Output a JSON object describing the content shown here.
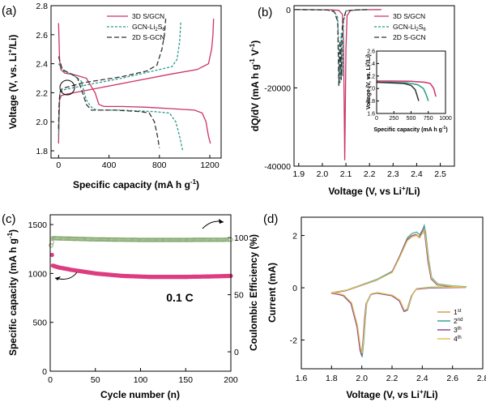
{
  "chart_data": [
    {
      "panel": "(a)",
      "type": "line",
      "xlabel": "Specific capacity (mA h g",
      "xlabel_sup": "-1",
      "xlabel_end": ")",
      "ylabel": "Voltage (V, vs. Li",
      "ylabel_sup": "+",
      "ylabel_end": "/Li)",
      "xlim": [
        -60,
        1290
      ],
      "ylim": [
        1.75,
        2.8
      ],
      "xticks": [
        0,
        400,
        800,
        1200
      ],
      "yticks": [
        1.8,
        2.0,
        2.2,
        2.4,
        2.6,
        2.8
      ],
      "legend_position": "top-right",
      "series": [
        {
          "name": "3D S/GCN",
          "color": "#cc3366",
          "dash": "solid",
          "discharge": [
            [
              0,
              2.68
            ],
            [
              8,
              2.42
            ],
            [
              18,
              2.36
            ],
            [
              50,
              2.335
            ],
            [
              120,
              2.325
            ],
            [
              220,
              2.3
            ],
            [
              290,
              2.2
            ],
            [
              320,
              2.12
            ],
            [
              360,
              2.105
            ],
            [
              500,
              2.105
            ],
            [
              700,
              2.1
            ],
            [
              900,
              2.09
            ],
            [
              1080,
              2.08
            ],
            [
              1140,
              2.06
            ],
            [
              1170,
              2.0
            ],
            [
              1190,
              1.9
            ],
            [
              1205,
              1.85
            ]
          ],
          "charge": [
            [
              0,
              1.85
            ],
            [
              3,
              2.0
            ],
            [
              8,
              2.15
            ],
            [
              20,
              2.18
            ],
            [
              60,
              2.19
            ],
            [
              300,
              2.23
            ],
            [
              600,
              2.28
            ],
            [
              900,
              2.33
            ],
            [
              1100,
              2.36
            ],
            [
              1190,
              2.4
            ],
            [
              1215,
              2.5
            ],
            [
              1225,
              2.6
            ],
            [
              1230,
              2.71
            ]
          ]
        },
        {
          "name": "GCN-Li",
          "name_sub": "2",
          "name_end": "S",
          "name_sub2": "6",
          "color": "#2a9a8a",
          "dash": "3,2",
          "discharge": [
            [
              0,
              2.4
            ],
            [
              40,
              2.35
            ],
            [
              120,
              2.32
            ],
            [
              180,
              2.28
            ],
            [
              220,
              2.15
            ],
            [
              260,
              2.1
            ],
            [
              300,
              2.08
            ],
            [
              500,
              2.08
            ],
            [
              760,
              2.07
            ],
            [
              880,
              2.06
            ],
            [
              930,
              2.0
            ],
            [
              960,
              1.9
            ],
            [
              985,
              1.8
            ]
          ],
          "charge": [
            [
              0,
              1.9
            ],
            [
              3,
              2.1
            ],
            [
              10,
              2.2
            ],
            [
              40,
              2.22
            ],
            [
              200,
              2.25
            ],
            [
              500,
              2.3
            ],
            [
              800,
              2.36
            ],
            [
              900,
              2.38
            ],
            [
              940,
              2.43
            ],
            [
              960,
              2.55
            ],
            [
              970,
              2.69
            ]
          ]
        },
        {
          "name": "2D S-GCN",
          "color": "#333333",
          "dash": "6,3",
          "discharge": [
            [
              0,
              2.45
            ],
            [
              30,
              2.36
            ],
            [
              100,
              2.33
            ],
            [
              150,
              2.3
            ],
            [
              190,
              2.2
            ],
            [
              220,
              2.12
            ],
            [
              260,
              2.08
            ],
            [
              450,
              2.08
            ],
            [
              650,
              2.07
            ],
            [
              720,
              2.06
            ],
            [
              760,
              2.0
            ],
            [
              785,
              1.9
            ],
            [
              800,
              1.82
            ]
          ],
          "charge": [
            [
              0,
              1.95
            ],
            [
              3,
              2.1
            ],
            [
              10,
              2.2
            ],
            [
              30,
              2.23
            ],
            [
              200,
              2.27
            ],
            [
              500,
              2.31
            ],
            [
              700,
              2.35
            ],
            [
              780,
              2.39
            ],
            [
              820,
              2.5
            ],
            [
              840,
              2.6
            ],
            [
              850,
              2.71
            ]
          ]
        }
      ]
    },
    {
      "panel": "(b)",
      "type": "line",
      "xlabel": "Voltage (V, vs Li",
      "xlabel_sup": "+",
      "xlabel_end": "/Li)",
      "ylabel": "dQ/dV (mA h g",
      "ylabel_sup": "-1",
      "ylabel_end": " V",
      "ylabel_sup2": "-1",
      "ylabel_close": ")",
      "xlim": [
        1.88,
        2.56
      ],
      "ylim": [
        -40000,
        1000
      ],
      "xticks": [
        1.9,
        2.0,
        2.1,
        2.2,
        2.3,
        2.4,
        2.5
      ],
      "yticks": [
        0,
        -20000,
        -40000
      ],
      "legend_position": "top-right",
      "series": [
        {
          "name": "3D S/GCN",
          "color": "#cc3366",
          "dash": "solid",
          "points": [
            [
              1.885,
              0
            ],
            [
              2.04,
              -50
            ],
            [
              2.07,
              -200
            ],
            [
              2.085,
              -1200
            ],
            [
              2.09,
              -8000
            ],
            [
              2.095,
              -38500
            ],
            [
              2.1,
              -10000
            ],
            [
              2.105,
              -1500
            ],
            [
              2.12,
              -200
            ],
            [
              2.16,
              -60
            ],
            [
              2.25,
              0
            ]
          ]
        },
        {
          "name": "GCN-Li",
          "name_sub": "2",
          "name_end": "S",
          "name_sub2": "6",
          "color": "#2a9a8a",
          "dash": "3,2",
          "points": [
            [
              1.885,
              0
            ],
            [
              2.02,
              -100
            ],
            [
              2.05,
              -400
            ],
            [
              2.065,
              -2000
            ],
            [
              2.075,
              -19000
            ],
            [
              2.08,
              -6000
            ],
            [
              2.085,
              -17000
            ],
            [
              2.09,
              -3000
            ],
            [
              2.1,
              -300
            ],
            [
              2.15,
              -50
            ],
            [
              2.2,
              0
            ]
          ]
        },
        {
          "name": "2D S-GCN",
          "color": "#333333",
          "dash": "6,3",
          "points": [
            [
              1.885,
              0
            ],
            [
              2.02,
              -100
            ],
            [
              2.05,
              -500
            ],
            [
              2.065,
              -3000
            ],
            [
              2.07,
              -19500
            ],
            [
              2.075,
              -8000
            ],
            [
              2.08,
              -18000
            ],
            [
              2.085,
              -3500
            ],
            [
              2.1,
              -300
            ],
            [
              2.15,
              -50
            ],
            [
              2.2,
              0
            ]
          ]
        }
      ],
      "inset": {
        "xlabel": "Specific capacity (mA h g",
        "xlabel_sup": "-1",
        "xlabel_end": ")",
        "ylabel": "Voltage (V, vs. Li",
        "ylabel_sup": "+",
        "ylabel_end": "/Li)",
        "xlim": [
          0,
          1000
        ],
        "ylim": [
          1.6,
          2.6
        ],
        "xticks": [
          0,
          250,
          500,
          750,
          1000
        ],
        "yticks": [
          1.6,
          1.8,
          2.0,
          2.2,
          2.4,
          2.6
        ],
        "series": [
          {
            "color": "#cc3366",
            "points": [
              [
                0,
                2.12
              ],
              [
                200,
                2.12
              ],
              [
                500,
                2.115
              ],
              [
                700,
                2.1
              ],
              [
                780,
                2.08
              ],
              [
                830,
                2.0
              ],
              [
                860,
                1.87
              ]
            ]
          },
          {
            "color": "#2a9a8a",
            "points": [
              [
                0,
                2.1
              ],
              [
                200,
                2.1
              ],
              [
                450,
                2.09
              ],
              [
                600,
                2.06
              ],
              [
                680,
                2.0
              ],
              [
                720,
                1.9
              ],
              [
                750,
                1.8
              ]
            ]
          },
          {
            "color": "#333333",
            "points": [
              [
                0,
                2.1
              ],
              [
                200,
                2.09
              ],
              [
                400,
                2.08
              ],
              [
                500,
                2.05
              ],
              [
                560,
                1.98
              ],
              [
                590,
                1.88
              ],
              [
                610,
                1.8
              ]
            ]
          }
        ]
      }
    },
    {
      "panel": "(c)",
      "type": "scatter",
      "xlabel": "Cycle number (n)",
      "ylabel": "Specific capacity (mA h g",
      "ylabel_sup": "-1",
      "ylabel_end": ")",
      "y2label": "Coulombic Efficiency (%)",
      "xlim": [
        0,
        200
      ],
      "ylim": [
        0,
        1600
      ],
      "y2lim": [
        -17,
        120
      ],
      "xticks": [
        0,
        50,
        100,
        150,
        200
      ],
      "yticks": [
        0,
        500,
        1000,
        1500
      ],
      "y2ticks": [
        0,
        50,
        100
      ],
      "annotation": "0.1 C",
      "series": [
        {
          "name": "capacity",
          "color": "#dd3d80",
          "axis": "left",
          "first": [
            [
              1,
              1290
            ],
            [
              2,
              1190
            ]
          ],
          "trend": [
            [
              3,
              1080
            ],
            [
              10,
              1060
            ],
            [
              25,
              1035
            ],
            [
              50,
              1000
            ],
            [
              80,
              975
            ],
            [
              110,
              965
            ],
            [
              150,
              965
            ],
            [
              180,
              970
            ],
            [
              200,
              975
            ]
          ]
        },
        {
          "name": "coulombic efficiency",
          "color": "#7aa060",
          "axis": "right",
          "first": [
            [
              1,
              93
            ],
            [
              2,
              96
            ]
          ],
          "trend": [
            [
              3,
              99.5
            ],
            [
              50,
              98.5
            ],
            [
              100,
              98.0
            ],
            [
              150,
              98.0
            ],
            [
              200,
              98.2
            ]
          ]
        }
      ]
    },
    {
      "panel": "(d)",
      "type": "line",
      "xlabel": "Voltage (V, vs Li",
      "xlabel_sup": "+",
      "xlabel_end": "/Li)",
      "ylabel": "Current (mA)",
      "xlim": [
        1.6,
        2.8
      ],
      "ylim": [
        -3.1,
        2.7
      ],
      "xticks": [
        1.6,
        1.8,
        2.0,
        2.2,
        2.4,
        2.6,
        2.8
      ],
      "yticks": [
        -2,
        0,
        2
      ],
      "legend_position": "bottom-right",
      "series": [
        {
          "name": "1",
          "name_sup": "st",
          "color": "#d89a55"
        },
        {
          "name": "2",
          "name_sup": "nd",
          "color": "#3aa39a"
        },
        {
          "name": "3",
          "name_sup": "th",
          "color": "#8a4a9a"
        },
        {
          "name": "4",
          "name_sup": "th",
          "color": "#e8c050"
        }
      ],
      "cathodic": [
        [
          2.69,
          0.02
        ],
        [
          2.45,
          0.0
        ],
        [
          2.36,
          -0.05
        ],
        [
          2.33,
          -0.3
        ],
        [
          2.3,
          -0.85
        ],
        [
          2.28,
          -0.9
        ],
        [
          2.25,
          -0.5
        ],
        [
          2.2,
          -0.3
        ],
        [
          2.1,
          -0.2
        ],
        [
          2.06,
          -0.25
        ],
        [
          2.03,
          -0.6
        ],
        [
          2.02,
          -1.2
        ],
        [
          2.01,
          -2.0
        ],
        [
          2.0,
          -2.6
        ],
        [
          1.99,
          -2.4
        ],
        [
          1.97,
          -1.5
        ],
        [
          1.93,
          -0.6
        ],
        [
          1.88,
          -0.3
        ],
        [
          1.85,
          -0.25
        ],
        [
          1.8,
          -0.2
        ]
      ],
      "anodic": [
        [
          1.8,
          -0.2
        ],
        [
          1.9,
          -0.1
        ],
        [
          2.0,
          0.1
        ],
        [
          2.1,
          0.3
        ],
        [
          2.2,
          0.6
        ],
        [
          2.25,
          1.2
        ],
        [
          2.28,
          1.6
        ],
        [
          2.3,
          1.85
        ],
        [
          2.33,
          2.0
        ],
        [
          2.36,
          2.05
        ],
        [
          2.38,
          1.95
        ],
        [
          2.4,
          2.15
        ],
        [
          2.41,
          2.3
        ],
        [
          2.42,
          2.0
        ],
        [
          2.44,
          1.0
        ],
        [
          2.46,
          0.35
        ],
        [
          2.5,
          0.12
        ],
        [
          2.6,
          0.05
        ],
        [
          2.69,
          0.02
        ]
      ]
    }
  ]
}
